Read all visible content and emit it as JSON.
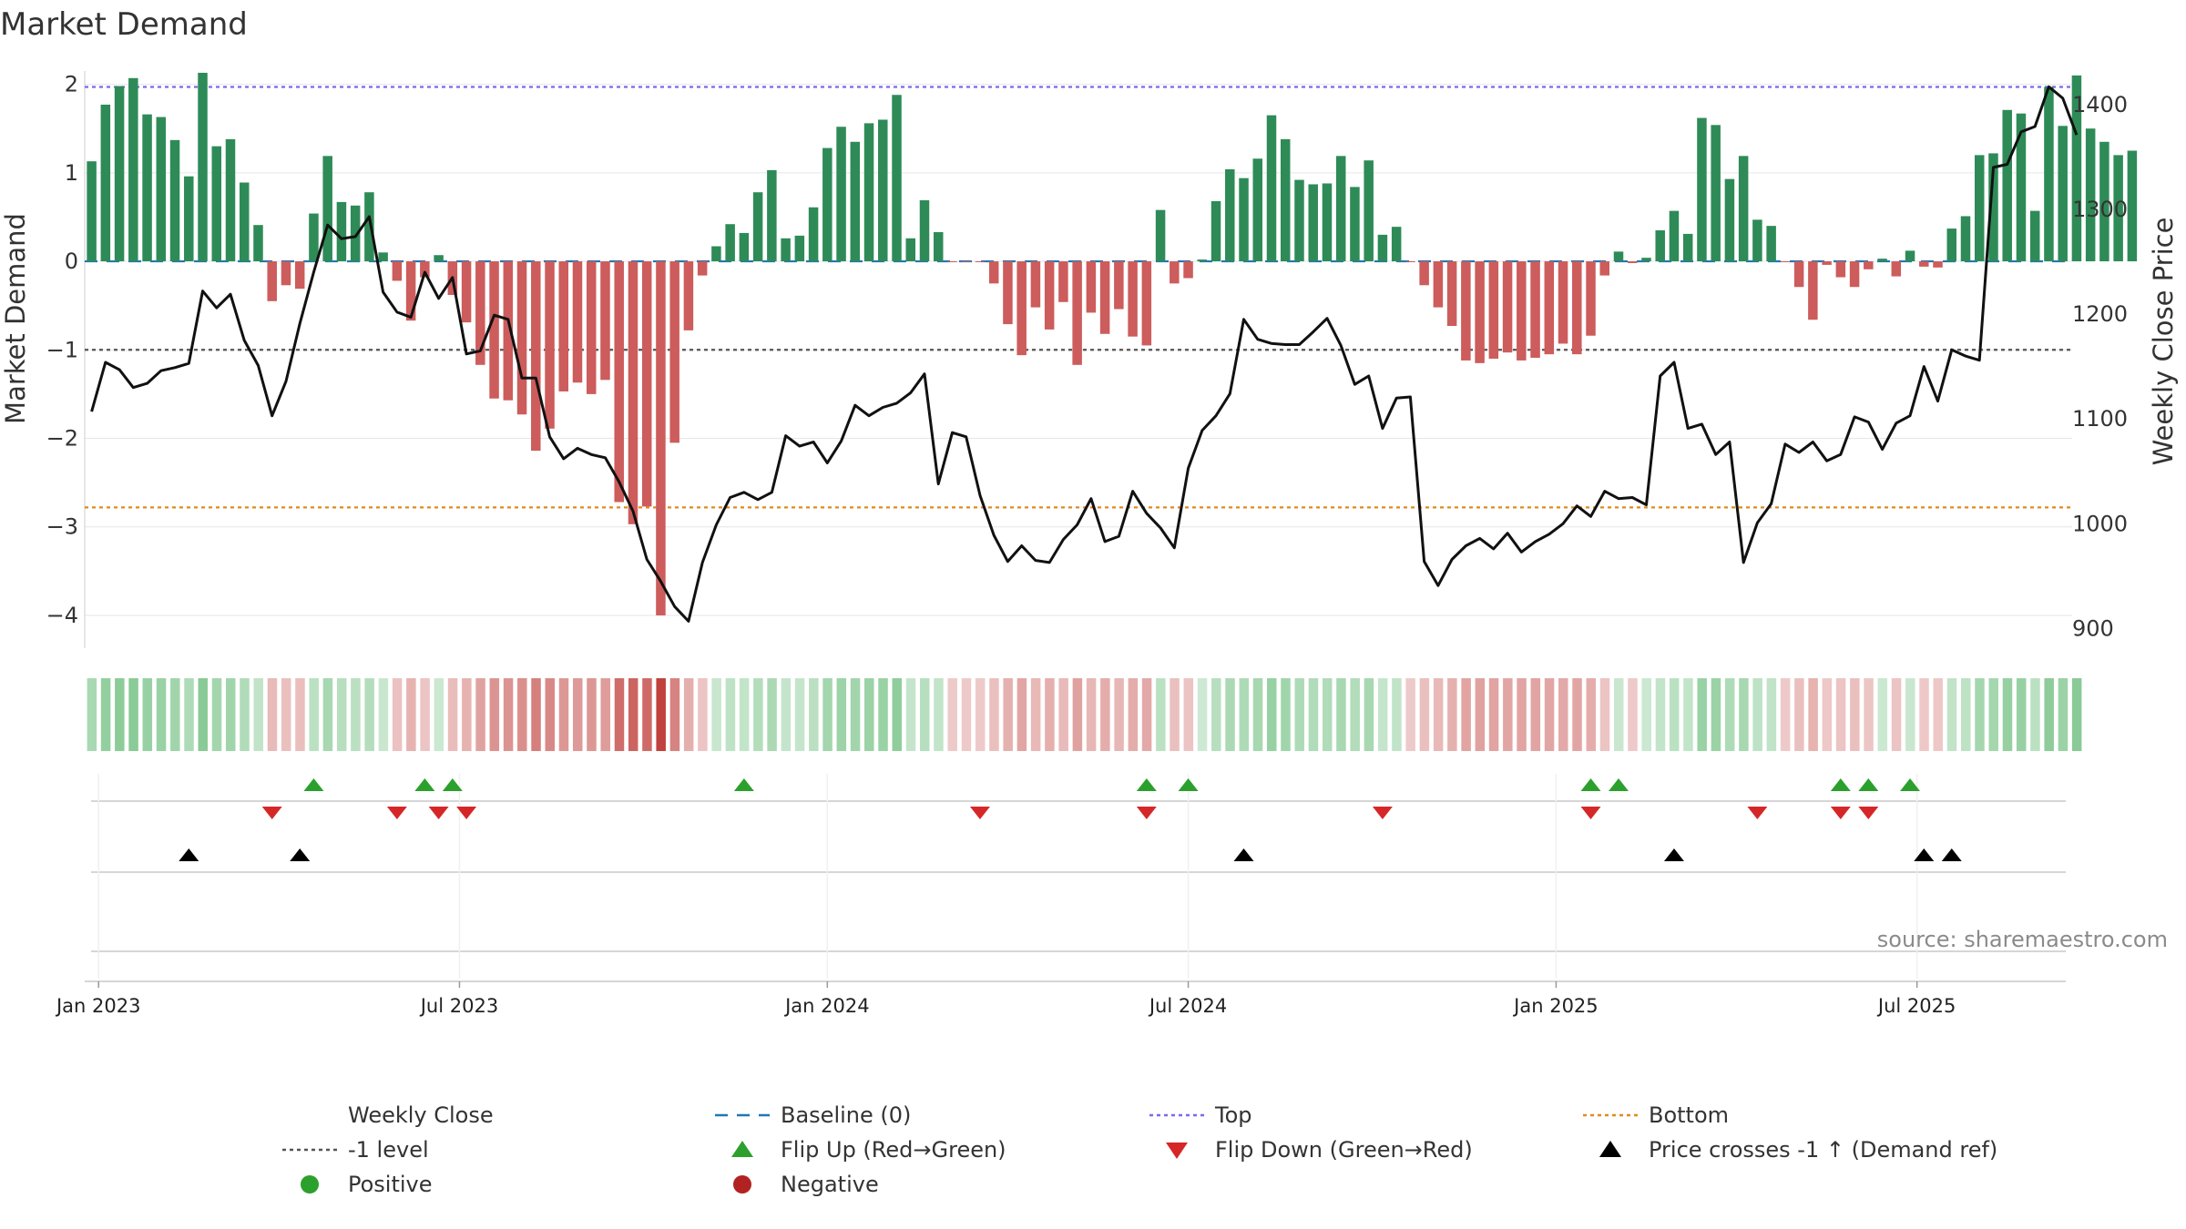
{
  "colors": {
    "positive_bar": "#2e8b57",
    "negative_bar": "#cd5c5c",
    "close_line": "#111111",
    "baseline": "#1f77b4",
    "top": "#7b68ee",
    "bottom": "#e08a1e",
    "minus1": "#555555",
    "flip_up": "#2ca02c",
    "flip_down": "#d62728",
    "cross": "#000000",
    "positive_dot": "#2ca02c",
    "negative_dot": "#b22222",
    "grid": "#e6e6e6"
  },
  "chart_data": {
    "type": "bar",
    "title": "Market Demand",
    "ylabel": "Market Demand",
    "y2label": "Weekly Close Price",
    "ylim": [
      -4.35,
      2.15
    ],
    "y2lim": [
      883,
      1432
    ],
    "yticks": [
      "2",
      "1",
      "0",
      "−1",
      "−2",
      "−3",
      "−4"
    ],
    "ytick_values": [
      2,
      1,
      0,
      -1,
      -2,
      -3,
      -4
    ],
    "y2ticks": [
      "1400",
      "1300",
      "1200",
      "1100",
      "1000",
      "900"
    ],
    "y2tick_values": [
      1400,
      1300,
      1200,
      1100,
      1000,
      900
    ],
    "xticks": [
      "Jan 2023",
      "Jul 2023",
      "Jan 2024",
      "Jul 2024",
      "Jan 2025",
      "Jul 2025"
    ],
    "xtick_weeks": [
      0.5,
      26.5,
      53,
      79,
      105.5,
      131.5
    ],
    "reference_lines": {
      "top": 1.97,
      "bottom": -2.78,
      "minus1": -1.0,
      "baseline": 0
    },
    "demand": [
      1.13,
      1.77,
      1.98,
      2.07,
      1.66,
      1.63,
      1.37,
      0.96,
      2.13,
      1.3,
      1.38,
      0.89,
      0.41,
      -0.45,
      -0.27,
      -0.31,
      0.54,
      1.19,
      0.67,
      0.63,
      0.78,
      0.1,
      -0.22,
      -0.67,
      -0.18,
      0.07,
      -0.38,
      -0.69,
      -1.17,
      -1.55,
      -1.57,
      -1.73,
      -2.14,
      -1.89,
      -1.47,
      -1.37,
      -1.5,
      -1.34,
      -2.72,
      -2.97,
      -2.77,
      -4.0,
      -2.05,
      -0.78,
      -0.16,
      0.17,
      0.42,
      0.32,
      0.78,
      1.03,
      0.26,
      0.29,
      0.61,
      1.28,
      1.52,
      1.35,
      1.56,
      1.6,
      1.88,
      0.26,
      0.69,
      0.33,
      -0.01,
      -0.01,
      -0.01,
      -0.25,
      -0.71,
      -1.06,
      -0.52,
      -0.77,
      -0.46,
      -1.17,
      -0.58,
      -0.82,
      -0.54,
      -0.85,
      -0.95,
      0.58,
      -0.25,
      -0.19,
      0.02,
      0.68,
      1.04,
      0.94,
      1.16,
      1.65,
      1.38,
      0.92,
      0.87,
      0.88,
      1.19,
      0.84,
      1.14,
      0.3,
      0.39,
      -0.01,
      -0.27,
      -0.52,
      -0.73,
      -1.12,
      -1.15,
      -1.1,
      -1.03,
      -1.12,
      -1.09,
      -1.05,
      -0.93,
      -1.05,
      -0.84,
      -0.16,
      0.11,
      -0.02,
      0.04,
      0.35,
      0.57,
      0.31,
      1.62,
      1.54,
      0.93,
      1.19,
      0.47,
      0.4,
      -0.01,
      -0.29,
      -0.66,
      -0.04,
      -0.18,
      -0.29,
      -0.09,
      0.03,
      -0.17,
      0.12,
      -0.06,
      -0.07,
      0.37,
      0.51,
      1.2,
      1.22,
      1.71,
      1.67,
      0.57,
      1.97,
      1.53,
      2.1,
      1.5,
      1.35,
      1.2,
      1.25
    ],
    "close": [
      1107,
      1154,
      1147,
      1130,
      1134,
      1146,
      1149,
      1153,
      1222,
      1206,
      1219,
      1175,
      1151,
      1103,
      1136,
      1191,
      1240,
      1285,
      1272,
      1274,
      1293,
      1221,
      1202,
      1197,
      1240,
      1215,
      1235,
      1162,
      1165,
      1199,
      1195,
      1139,
      1139,
      1083,
      1062,
      1072,
      1066,
      1063,
      1040,
      1012,
      966,
      945,
      921,
      907,
      963,
      999,
      1025,
      1030,
      1023,
      1030,
      1084,
      1074,
      1078,
      1058,
      1079,
      1113,
      1103,
      1111,
      1115,
      1125,
      1143,
      1038,
      1087,
      1083,
      1027,
      989,
      964,
      979,
      965,
      963,
      985,
      999,
      1024,
      983,
      988,
      1031,
      1010,
      996,
      977,
      1053,
      1089,
      1103,
      1124,
      1195,
      1176,
      1172,
      1171,
      1171,
      1183,
      1196,
      1170,
      1133,
      1141,
      1091,
      1120,
      1121,
      964,
      941,
      966,
      979,
      986,
      976,
      991,
      973,
      983,
      990,
      1000,
      1017,
      1007,
      1031,
      1024,
      1025,
      1018,
      1141,
      1154,
      1091,
      1095,
      1066,
      1078,
      963,
      1001,
      1019,
      1076,
      1068,
      1078,
      1060,
      1066,
      1102,
      1097,
      1071,
      1096,
      1103,
      1150,
      1117,
      1166,
      1160,
      1156,
      1340,
      1343,
      1374,
      1379,
      1417,
      1406,
      1371
    ],
    "band_weeks": 144,
    "flip_up_weeks": [
      16,
      24,
      26,
      47,
      76,
      79,
      108,
      110,
      126,
      128,
      131
    ],
    "flip_down_weeks": [
      13,
      22,
      25,
      27,
      64,
      76,
      93,
      108,
      120,
      126,
      128
    ],
    "cross_weeks": [
      7,
      15,
      83,
      114,
      132,
      134
    ]
  },
  "source": "source: sharemaestro.com",
  "legend": [
    {
      "key": "close",
      "label": "Weekly Close",
      "marker": "line"
    },
    {
      "key": "baseline",
      "label": "Baseline (0)",
      "marker": "dash"
    },
    {
      "key": "top",
      "label": "Top",
      "marker": "dot"
    },
    {
      "key": "bottom",
      "label": "Bottom",
      "marker": "dot"
    },
    {
      "key": "minus1",
      "label": "-1 level",
      "marker": "dot"
    },
    {
      "key": "flip_up",
      "label": "Flip Up (Red→Green)",
      "marker": "tri-up"
    },
    {
      "key": "flip_down",
      "label": "Flip Down (Green→Red)",
      "marker": "tri-down"
    },
    {
      "key": "cross",
      "label": "Price crosses -1 ↑ (Demand ref)",
      "marker": "tri-up"
    },
    {
      "key": "positive_dot",
      "label": "Positive",
      "marker": "circle"
    },
    {
      "key": "negative_dot",
      "label": "Negative",
      "marker": "circle"
    }
  ]
}
